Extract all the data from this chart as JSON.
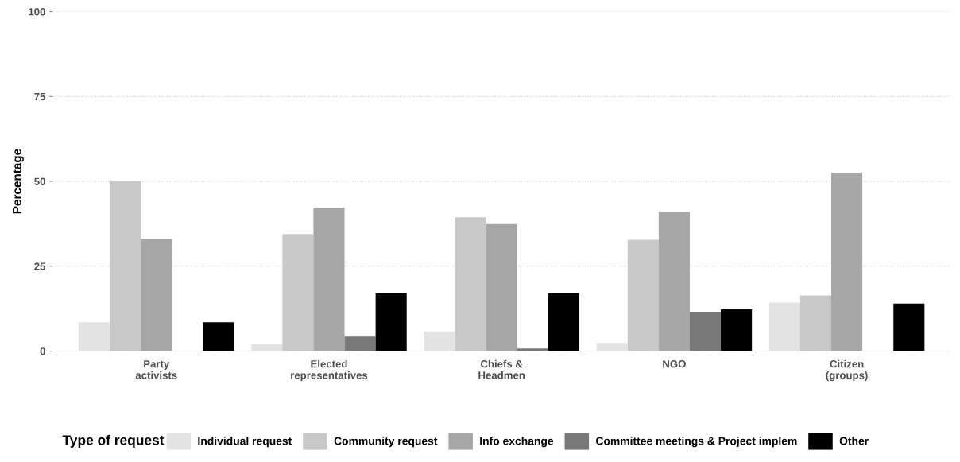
{
  "chart_data": {
    "type": "bar",
    "ylabel": "Percentage",
    "legend_title": "Type of request",
    "categories": [
      "Party\nactivists",
      "Elected\nrepresentatives",
      "Chiefs &\nHeadmen",
      "NGO",
      "Citizen\n(groups)"
    ],
    "series": [
      {
        "name": "Individual request",
        "color": "#e3e3e3",
        "values": [
          8.5,
          2,
          5.8,
          2.4,
          14.3
        ]
      },
      {
        "name": "Community request",
        "color": "#c8c8c8",
        "values": [
          50,
          34.5,
          39.4,
          32.8,
          16.4
        ]
      },
      {
        "name": "Info exchange",
        "color": "#a6a6a6",
        "values": [
          33,
          42.3,
          37.4,
          41,
          52.6
        ]
      },
      {
        "name": "Committee meetings & Project implem",
        "color": "#787878",
        "values": [
          0,
          4.3,
          0.8,
          11.6,
          0
        ]
      },
      {
        "name": "Other",
        "color": "#000000",
        "values": [
          8.5,
          17,
          17,
          12.3,
          14
        ]
      }
    ],
    "ylim": [
      0,
      100
    ],
    "yticks": [
      0,
      25,
      50,
      75,
      100
    ],
    "grid": "y",
    "legend": "bottom"
  }
}
